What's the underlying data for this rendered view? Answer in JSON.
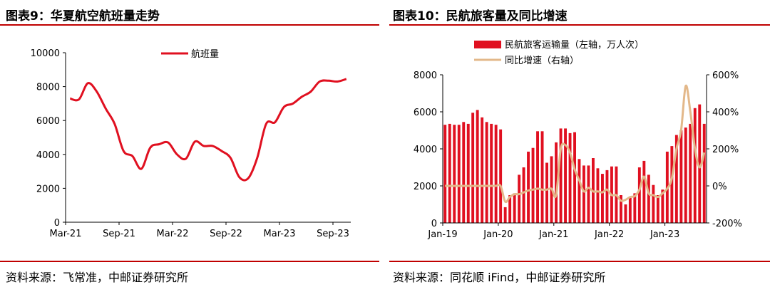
{
  "panels": {
    "left": {
      "title": "图表9：华夏航空航班量走势",
      "source": "资料来源：飞常准，中邮证券研究所"
    },
    "right": {
      "title": "图表10：民航旅客量及同比增速",
      "source": "资料来源：同花顺 iFind，中邮证券研究所"
    }
  },
  "colors": {
    "accent": "#c00000",
    "bar": "#e01020",
    "line_left": "#e01020",
    "line_right": "#e3b88a"
  },
  "chart_data": [
    {
      "type": "line",
      "title": "",
      "legend_position": "top-right",
      "ylim": [
        0,
        10000
      ],
      "yticks": [
        0,
        2000,
        4000,
        6000,
        8000,
        10000
      ],
      "xticks": [
        "Mar-21",
        "Sep-21",
        "Mar-22",
        "Sep-22",
        "Mar-23",
        "Sep-23"
      ],
      "xtick_index": [
        0,
        6,
        12,
        18,
        24,
        30
      ],
      "x": [
        "2021-03",
        "2021-04",
        "2021-05",
        "2021-06",
        "2021-07",
        "2021-08",
        "2021-09",
        "2021-10",
        "2021-11",
        "2021-12",
        "2022-01",
        "2022-02",
        "2022-03",
        "2022-04",
        "2022-05",
        "2022-06",
        "2022-07",
        "2022-08",
        "2022-09",
        "2022-10",
        "2022-11",
        "2022-12",
        "2023-01",
        "2023-02",
        "2023-03",
        "2023-04",
        "2023-05",
        "2023-06",
        "2023-07",
        "2023-08",
        "2023-09",
        "2023-10"
      ],
      "series": [
        {
          "name": "航班量",
          "values": [
            7300,
            7250,
            8200,
            7700,
            6700,
            5800,
            4200,
            3900,
            3150,
            4400,
            4600,
            4700,
            4000,
            3750,
            4750,
            4500,
            4500,
            4200,
            3800,
            2650,
            2600,
            3800,
            5800,
            5900,
            6800,
            7000,
            7400,
            7700,
            8300,
            8350,
            8300,
            8450
          ]
        }
      ]
    },
    {
      "type": "bar+line",
      "title": "",
      "legend_position": "top",
      "ylim_left": [
        0,
        8000
      ],
      "yticks_left": [
        0,
        2000,
        4000,
        6000,
        8000
      ],
      "ylim_right": [
        -200,
        600
      ],
      "yticks_right": [
        "-200%",
        "0%",
        "200%",
        "400%",
        "600%"
      ],
      "xticks": [
        "Jan-19",
        "Jan-20",
        "Jan-21",
        "Jan-22",
        "Jan-23"
      ],
      "xtick_index": [
        0,
        12,
        24,
        36,
        48
      ],
      "series": [
        {
          "name": "民航旅客运输量（左轴，万人次）",
          "type": "bar",
          "values": [
            5300,
            5350,
            5300,
            5300,
            5450,
            5350,
            5950,
            6100,
            5700,
            5450,
            5350,
            5300,
            5050,
            850,
            1500,
            1600,
            2600,
            3000,
            3850,
            4050,
            4950,
            4950,
            3250,
            3600,
            4350,
            5100,
            5100,
            4850,
            4900,
            3450,
            3100,
            3100,
            3500,
            2950,
            2650,
            2850,
            3050,
            3050,
            1500,
            1000,
            1350,
            1600,
            3000,
            3350,
            2600,
            2050,
            1500,
            1800,
            3850,
            4150,
            4750,
            5000,
            5150,
            5350,
            6200,
            6400,
            5350
          ]
        },
        {
          "name": "同比增速（右轴）",
          "type": "line",
          "values": [
            0,
            0,
            0,
            0,
            0,
            0,
            0,
            0,
            0,
            0,
            0,
            0,
            0,
            -85,
            -60,
            -45,
            -45,
            -35,
            -25,
            -20,
            -15,
            -20,
            -20,
            -15,
            -50,
            200,
            220,
            180,
            90,
            30,
            -30,
            -10,
            -30,
            -30,
            -35,
            -20,
            -50,
            -50,
            -80,
            -75,
            -60,
            -55,
            -20,
            50,
            -40,
            -50,
            -60,
            -40,
            -15,
            40,
            200,
            300,
            540,
            400,
            200,
            100,
            180
          ]
        }
      ]
    }
  ]
}
